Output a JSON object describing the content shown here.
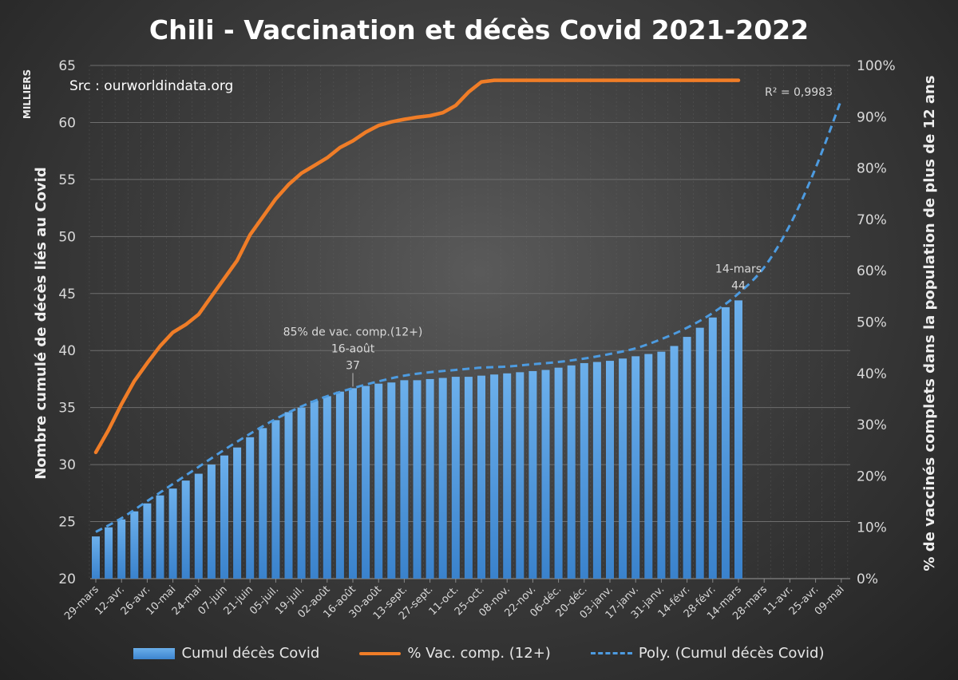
{
  "title": "Chili - Vaccination et décès Covid 2021-2022",
  "source": "Src : ourworldindata.org",
  "chart_data": {
    "type": "bar+line",
    "title": "Chili - Vaccination et décès Covid 2021-2022",
    "ylabel": "Nombre cumulé de décès liés au Covid",
    "yunit": "MILLIERS",
    "y2label": "% de vaccinés complets dans  la population de plus de 12 ans",
    "ylim": [
      20,
      65
    ],
    "yticks": [
      "20",
      "25",
      "30",
      "35",
      "40",
      "45",
      "50",
      "55",
      "60",
      "65"
    ],
    "y2lim": [
      0,
      100
    ],
    "y2ticks": [
      "0%",
      "10%",
      "20%",
      "30%",
      "40%",
      "50%",
      "60%",
      "70%",
      "80%",
      "90%",
      "100%"
    ],
    "xtick_labels": [
      "29-mars",
      "12-avr.",
      "26-avr.",
      "10-mai",
      "24-mai",
      "07-juin",
      "21-juin",
      "05-juil.",
      "19-juil.",
      "02-août",
      "16-août",
      "30-août",
      "13-sept.",
      "27-sept.",
      "11-oct.",
      "25-oct.",
      "08-nov.",
      "22-nov.",
      "06-déc.",
      "20-déc.",
      "03-janv.",
      "17-janv.",
      "31-janv.",
      "14-févr.",
      "28-févr.",
      "14-mars",
      "28-mars",
      "11-avr.",
      "25-avr.",
      "09-mai"
    ],
    "series": [
      {
        "name": "Cumul décès Covid",
        "kind": "bar",
        "axis": "left",
        "color": "#4d94db",
        "values": [
          23.7,
          24.5,
          25.2,
          25.9,
          26.6,
          27.3,
          27.9,
          28.6,
          29.2,
          30.0,
          30.8,
          31.5,
          32.4,
          33.2,
          33.9,
          34.6,
          35.0,
          35.6,
          36.0,
          36.4,
          36.7,
          36.9,
          37.1,
          37.2,
          37.4,
          37.4,
          37.5,
          37.6,
          37.7,
          37.7,
          37.8,
          37.9,
          38.0,
          38.1,
          38.2,
          38.3,
          38.5,
          38.7,
          38.9,
          39.0,
          39.1,
          39.3,
          39.5,
          39.7,
          39.9,
          40.4,
          41.2,
          42.0,
          42.9,
          43.8,
          44.4
        ]
      },
      {
        "name": "% Vac. comp. (12+)",
        "kind": "line",
        "axis": "right",
        "color": "#f07d27",
        "values": [
          24.6,
          29,
          34,
          38.5,
          42,
          45.3,
          48,
          49.5,
          51.5,
          55,
          58.5,
          62,
          67,
          70.5,
          74,
          76.8,
          79,
          80.5,
          82,
          84,
          85.3,
          87,
          88.3,
          89,
          89.5,
          89.9,
          90.2,
          90.8,
          92.2,
          94.8,
          96.8,
          97.1,
          97.1,
          97.1,
          97.1,
          97.1,
          97.1,
          97.1,
          97.1,
          97.1,
          97.1,
          97.1,
          97.1,
          97.1,
          97.1,
          97.1,
          97.1,
          97.1,
          97.1,
          97.1,
          97.1
        ]
      },
      {
        "name": "Poly. (Cumul décès Covid)",
        "kind": "trend",
        "axis": "left",
        "color": "#4d9be0",
        "week_step": 2,
        "values": [
          24.1,
          25.3,
          26.8,
          28.3,
          29.8,
          31.3,
          32.7,
          34.0,
          35.1,
          36.0,
          36.7,
          37.3,
          37.8,
          38.1,
          38.3,
          38.5,
          38.6,
          38.8,
          39.0,
          39.3,
          39.7,
          40.2,
          41.0,
          42.0,
          43.3,
          45.0,
          47.3,
          51.0,
          56.0,
          62.0
        ]
      }
    ],
    "annotations": [
      {
        "week": 20,
        "lines": [
          "85% de vac. comp.(12+)",
          "16-août",
          "37"
        ]
      },
      {
        "week": 50,
        "lines": [
          "14-mars",
          "44"
        ]
      }
    ],
    "r_squared_label": "R² = 0,9983",
    "legend": [
      "Cumul décès Covid",
      "% Vac. comp. (12+)",
      "Poly. (Cumul décès Covid)"
    ],
    "legend_position": "bottom",
    "grid": true
  }
}
